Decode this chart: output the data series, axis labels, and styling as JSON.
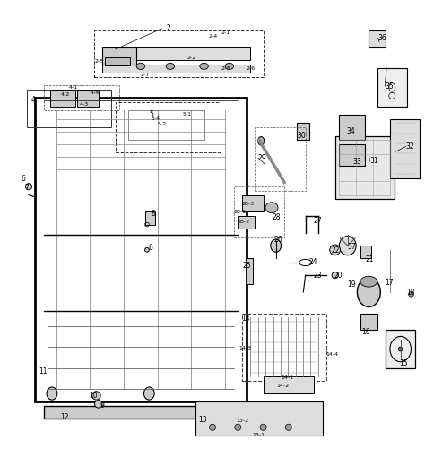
{
  "bg_color": "#ffffff",
  "line_color": "#000000",
  "figsize": [
    4.74,
    5.2
  ],
  "dpi": 100
}
